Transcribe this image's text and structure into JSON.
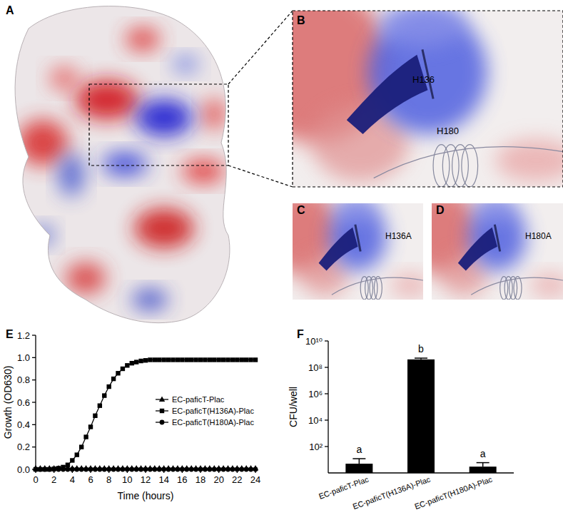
{
  "panels": {
    "labels": [
      "A",
      "B",
      "C",
      "D",
      "E",
      "F"
    ]
  },
  "structure": {
    "residues": [
      "H136",
      "H180"
    ],
    "mutants": [
      "H136A",
      "H180A"
    ]
  },
  "chart_data": [
    {
      "type": "line",
      "xlabel": "Time (hours)",
      "ylabel": "Growth (OD630)",
      "x": [
        0,
        0.5,
        1,
        1.5,
        2,
        2.5,
        3,
        3.5,
        4,
        4.5,
        5,
        5.5,
        6,
        6.5,
        7,
        7.5,
        8,
        8.5,
        9,
        9.5,
        10,
        10.5,
        11,
        11.5,
        12,
        12.5,
        13,
        13.5,
        14,
        14.5,
        15,
        15.5,
        16,
        16.5,
        17,
        17.5,
        18,
        18.5,
        19,
        19.5,
        20,
        20.5,
        21,
        21.5,
        22,
        22.5,
        23,
        23.5,
        24
      ],
      "series": [
        {
          "name": "EC-paficT-Plac",
          "color": "#000000",
          "marker": "triangle",
          "values": [
            0.01,
            0.01,
            0.01,
            0.01,
            0.01,
            0.01,
            0.01,
            0.01,
            0.01,
            0.01,
            0.01,
            0.01,
            0.01,
            0.01,
            0.01,
            0.01,
            0.01,
            0.01,
            0.01,
            0.01,
            0.01,
            0.01,
            0.01,
            0.01,
            0.01,
            0.01,
            0.01,
            0.01,
            0.01,
            0.01,
            0.01,
            0.01,
            0.01,
            0.01,
            0.01,
            0.01,
            0.01,
            0.01,
            0.01,
            0.01,
            0.01,
            0.01,
            0.01,
            0.01,
            0.01,
            0.01,
            0.01,
            0.01,
            0.01
          ]
        },
        {
          "name": "EC-paficT(H136A)-Plac",
          "color": "#000000",
          "marker": "square",
          "values": [
            0,
            0,
            0,
            0,
            0.005,
            0.01,
            0.02,
            0.04,
            0.08,
            0.13,
            0.2,
            0.29,
            0.38,
            0.48,
            0.57,
            0.66,
            0.74,
            0.81,
            0.86,
            0.9,
            0.93,
            0.95,
            0.96,
            0.97,
            0.975,
            0.98,
            0.98,
            0.98,
            0.98,
            0.98,
            0.98,
            0.98,
            0.98,
            0.98,
            0.98,
            0.98,
            0.98,
            0.98,
            0.98,
            0.98,
            0.98,
            0.98,
            0.98,
            0.98,
            0.98,
            0.98,
            0.98,
            0.98,
            0.98
          ]
        },
        {
          "name": "EC-paficT(H180A)-Plac",
          "color": "#000000",
          "marker": "circle",
          "values": [
            0,
            0,
            0,
            0,
            0,
            0,
            0,
            0,
            0,
            0,
            0,
            0,
            0,
            0,
            0,
            0,
            0,
            0,
            0,
            0,
            0,
            0,
            0,
            0,
            0,
            0,
            0,
            0,
            0,
            0,
            0,
            0,
            0,
            0,
            0,
            0,
            0,
            0,
            0,
            0,
            0,
            0,
            0,
            0,
            0,
            0,
            0,
            0,
            0
          ]
        }
      ],
      "xlim": [
        0,
        24
      ],
      "xticks": [
        0,
        2,
        4,
        6,
        8,
        10,
        12,
        14,
        16,
        18,
        20,
        22,
        24
      ],
      "ylim": [
        0,
        1.2
      ],
      "yticks": [
        {
          "value": 0,
          "label": "0.0"
        },
        {
          "value": 0.2,
          "label": "0.2"
        },
        {
          "value": 0.4,
          "label": "0.4"
        },
        {
          "value": 0.6,
          "label": "0.6"
        },
        {
          "value": 0.8,
          "label": "0.8"
        },
        {
          "value": 1,
          "label": "1.0"
        },
        {
          "value": 1.2,
          "label": "1.2"
        }
      ],
      "legend": "right"
    },
    {
      "type": "bar",
      "ylabel": "CFU/well",
      "categories": [
        "EC-paficT-Plac",
        "EC-paficT(H136A)-Plac",
        "EC-paficT(H180A)-Plac"
      ],
      "values": [
        5,
        400000000,
        3
      ],
      "errors": [
        7,
        100000000,
        3
      ],
      "annotations": [
        "a",
        "b",
        "a"
      ],
      "color": "#000000",
      "log": "y",
      "ylim": [
        1,
        10000000000
      ],
      "yticks": [
        {
          "value": 100,
          "label": "10²"
        },
        {
          "value": 10000,
          "label": "10⁴"
        },
        {
          "value": 1000000,
          "label": "10⁶"
        },
        {
          "value": 100000000,
          "label": "10⁸"
        },
        {
          "value": 10000000000,
          "label": "10¹⁰"
        }
      ]
    }
  ]
}
